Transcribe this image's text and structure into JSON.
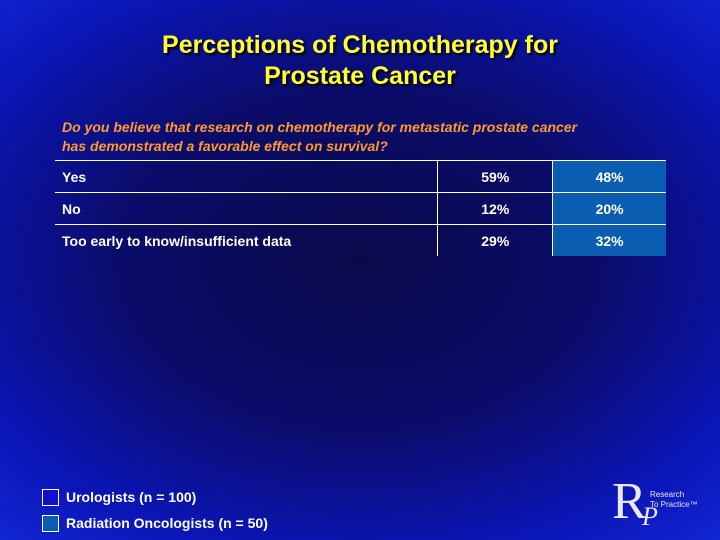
{
  "slide": {
    "title_line1": "Perceptions of Chemotherapy for",
    "title_line2": "Prostate Cancer",
    "question_line1": "Do you believe that research on chemotherapy for metastatic prostate cancer",
    "question_line2": "has demonstrated a favorable effect on survival?"
  },
  "table": {
    "rows": [
      {
        "label": "Yes",
        "urologists": "59%",
        "radiation_oncologists": "48%"
      },
      {
        "label": "No",
        "urologists": "12%",
        "radiation_oncologists": "20%"
      },
      {
        "label": "Too early to know/insufficient data",
        "urologists": "29%",
        "radiation_oncologists": "32%"
      }
    ]
  },
  "legend": {
    "items": [
      {
        "label": "Urologists  (n = 100)",
        "color": "#1010c8"
      },
      {
        "label": "Radiation Oncologists  (n = 50)",
        "color": "#0a5db0"
      }
    ]
  },
  "logo": {
    "letter": "R",
    "sub_letter": "P",
    "tagline_line1": "Research",
    "tagline_line2": "To Practice™"
  }
}
